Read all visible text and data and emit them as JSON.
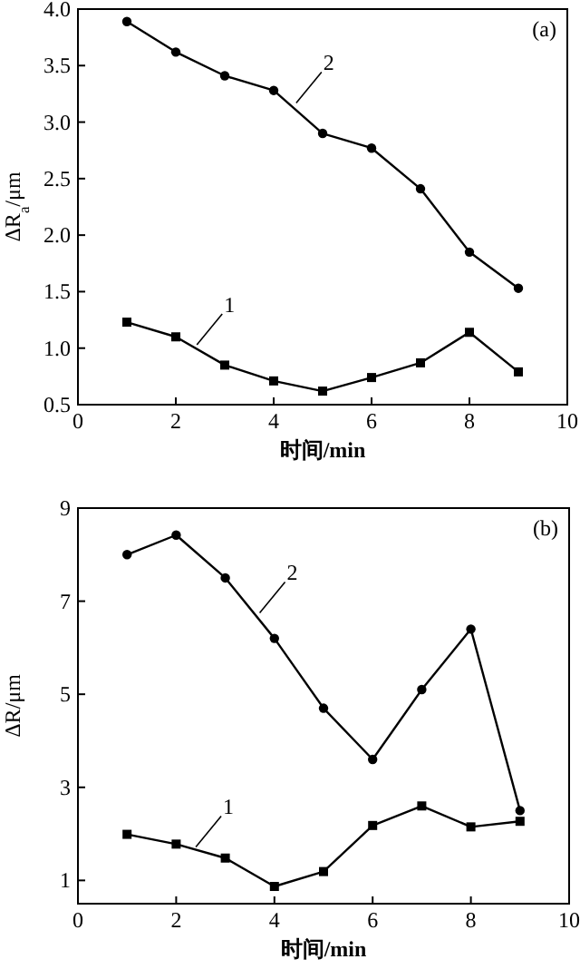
{
  "chart_data": [
    {
      "type": "line",
      "xlabel": "时间/min",
      "ylabel": "ΔR$_{a}$/μm",
      "x": [
        1,
        2,
        3,
        4,
        5,
        6,
        7,
        8,
        9
      ],
      "xlim": [
        0,
        10
      ],
      "xticks": [
        0,
        2,
        4,
        6,
        8,
        10
      ],
      "ylim": [
        0.5,
        4.0
      ],
      "yticks": [
        {
          "value": 0.5,
          "label": "0.5"
        },
        {
          "value": 1.0,
          "label": "1.0"
        },
        {
          "value": 1.5,
          "label": "1.5"
        },
        {
          "value": 2.0,
          "label": "2.0"
        },
        {
          "value": 2.5,
          "label": "2.5"
        },
        {
          "value": 3.0,
          "label": "3.0"
        },
        {
          "value": 3.5,
          "label": "3.5"
        },
        {
          "value": 4.0,
          "label": "4.0"
        }
      ],
      "series": [
        {
          "color": "#000000",
          "marker": "square",
          "values": [
            1.23,
            1.1,
            0.85,
            0.71,
            0.62,
            0.74,
            0.87,
            1.14,
            0.79
          ]
        },
        {
          "color": "#000000",
          "marker": "circle",
          "values": [
            3.89,
            3.62,
            3.41,
            3.28,
            2.9,
            2.77,
            2.41,
            1.85,
            1.53
          ]
        }
      ],
      "annotations": [
        "(a)",
        {
          "text": "1",
          "x": 2.43,
          "y": 1.03
        },
        {
          "text": "2",
          "x": 4.46,
          "y": 3.17
        }
      ]
    },
    {
      "type": "line",
      "xlabel": "时间/min",
      "ylabel": "ΔR/μm",
      "x": [
        1,
        2,
        3,
        4,
        5,
        6,
        7,
        8,
        9
      ],
      "xlim": [
        0,
        10
      ],
      "xticks": [
        0,
        2,
        4,
        6,
        8,
        10
      ],
      "ylim": [
        0.5,
        9
      ],
      "yticks": [
        1,
        3,
        5,
        7,
        9
      ],
      "series": [
        {
          "color": "#000000",
          "marker": "square",
          "values": [
            1.99,
            1.78,
            1.48,
            0.87,
            1.19,
            2.18,
            2.6,
            2.15,
            2.27
          ]
        },
        {
          "color": "#000000",
          "marker": "circle",
          "values": [
            8.0,
            8.42,
            7.5,
            6.2,
            4.7,
            3.6,
            5.1,
            6.4,
            2.5
          ]
        }
      ],
      "annotations": [
        "(b)",
        {
          "text": "1",
          "x": 2.4,
          "y": 1.72
        },
        {
          "text": "2",
          "x": 3.7,
          "y": 6.75
        }
      ]
    }
  ]
}
